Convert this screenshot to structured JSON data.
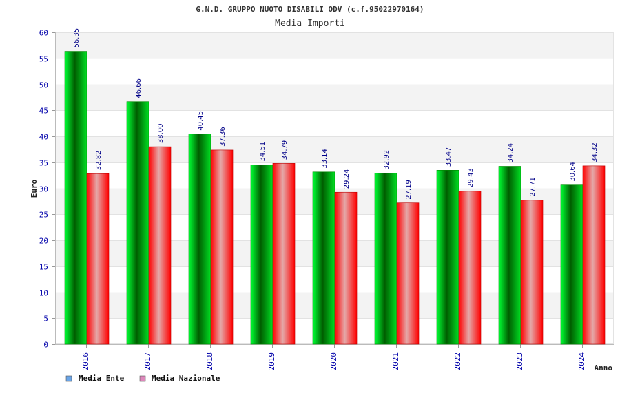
{
  "chart_data": {
    "type": "bar",
    "title": "G.N.D. GRUPPO NUOTO DISABILI ODV (c.f.95022970164)",
    "subtitle": "Media Importi",
    "xlabel": "Anno",
    "ylabel": "Euro",
    "ylim": [
      0,
      60
    ],
    "yticks": [
      0,
      5,
      10,
      15,
      20,
      25,
      30,
      35,
      40,
      45,
      50,
      55,
      60
    ],
    "categories": [
      "2016",
      "2017",
      "2018",
      "2019",
      "2020",
      "2021",
      "2022",
      "2023",
      "2024"
    ],
    "series": [
      {
        "name": "Media Ente",
        "values": [
          56.35,
          46.66,
          40.45,
          34.51,
          33.14,
          32.92,
          33.47,
          34.24,
          30.64
        ],
        "labels": [
          "56.35",
          "46.66",
          "40.45",
          "34.51",
          "33.14",
          "32.92",
          "33.47",
          "34.24",
          "30.64"
        ],
        "color": "#00c000",
        "legend_color": "#6aa5e8"
      },
      {
        "name": "Media Nazionale",
        "values": [
          32.82,
          38.0,
          37.36,
          34.79,
          29.24,
          27.19,
          29.43,
          27.71,
          34.32
        ],
        "labels": [
          "32.82",
          "38.00",
          "37.36",
          "34.79",
          "29.24",
          "27.19",
          "29.43",
          "27.71",
          "34.32"
        ],
        "color": "#ff2020",
        "legend_color": "#dd88bb"
      }
    ],
    "grid": true,
    "legend_position": "bottom-left"
  }
}
